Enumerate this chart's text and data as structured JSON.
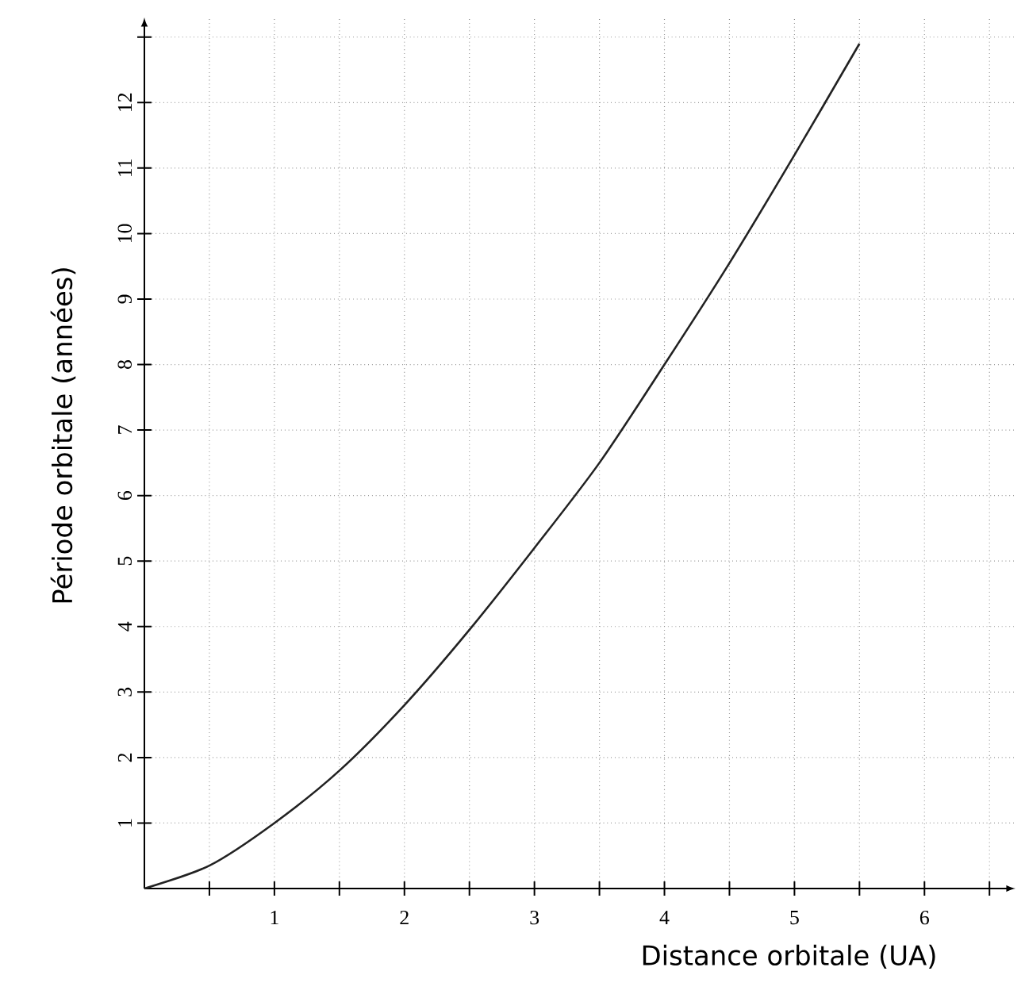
{
  "chart_data": {
    "type": "line",
    "xlabel": "Distance orbitale (UA)",
    "ylabel": "Période orbitale (années)",
    "x": [
      0,
      0.5,
      1,
      1.5,
      2,
      2.5,
      3,
      3.5,
      4,
      4.5,
      5,
      5.5
    ],
    "series": [
      {
        "color": "#222222",
        "values": [
          0,
          0.35,
          1,
          1.8,
          2.8,
          3.95,
          5.2,
          6.5,
          8,
          9.55,
          11.2,
          12.9
        ]
      }
    ],
    "xlim": [
      0,
      6.7
    ],
    "ylim": [
      0,
      13.3
    ],
    "xticks": [
      {
        "value": 0.5,
        "label": null
      },
      1,
      {
        "value": 1.5,
        "label": null
      },
      2,
      {
        "value": 2.5,
        "label": null
      },
      3,
      {
        "value": 3.5,
        "label": null
      },
      4,
      {
        "value": 4.5,
        "label": null
      },
      5,
      {
        "value": 5.5,
        "label": null
      },
      6,
      {
        "value": 6.5,
        "label": null
      }
    ],
    "yticks": [
      1,
      2,
      3,
      4,
      5,
      6,
      7,
      8,
      9,
      10,
      11,
      12,
      {
        "value": 13,
        "label": null
      }
    ],
    "grid": true
  }
}
